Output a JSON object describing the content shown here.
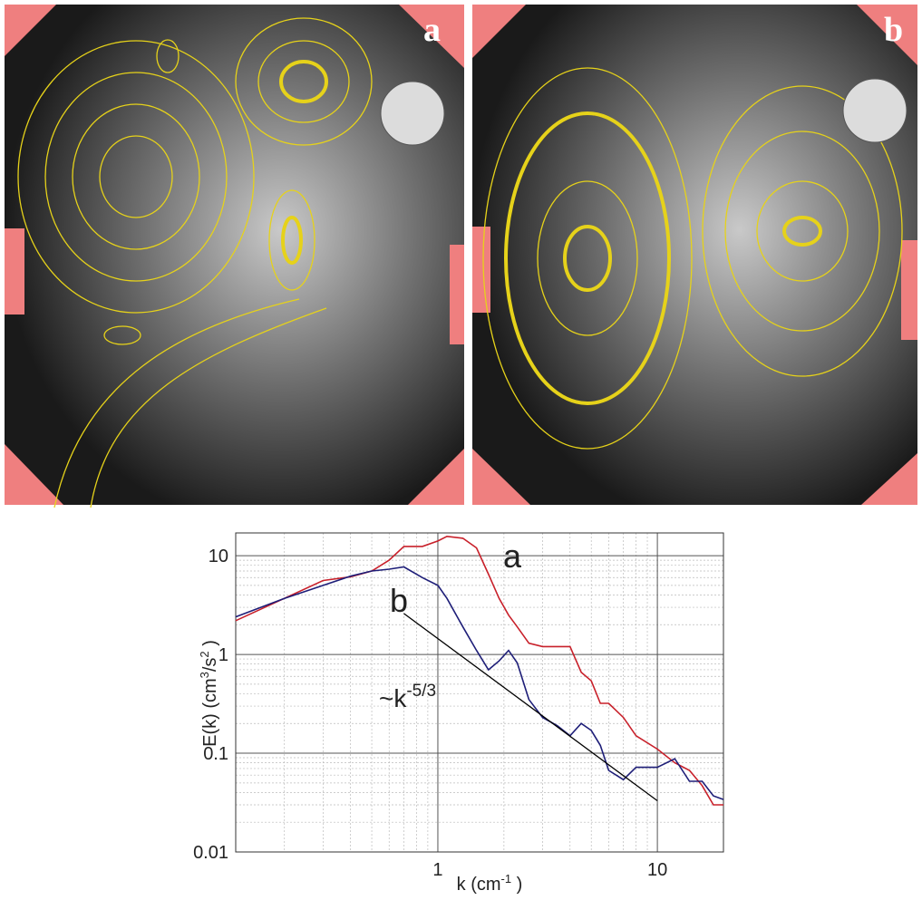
{
  "panels": [
    {
      "label": "a"
    },
    {
      "label": "b"
    }
  ],
  "chart_data": {
    "type": "line",
    "x": [
      0.12,
      0.2,
      0.3,
      0.4,
      0.5,
      0.6,
      0.7,
      0.85,
      1.0,
      1.1,
      1.3,
      1.5,
      1.7,
      1.9,
      2.1,
      2.3,
      2.6,
      3.0,
      3.5,
      4.0,
      4.5,
      5,
      5.5,
      6,
      7,
      8,
      10,
      12,
      14,
      16,
      18,
      20
    ],
    "series": [
      {
        "name": "a",
        "color": "#c8202a",
        "values": [
          2.2,
          3.7,
          5.6,
          6.1,
          7,
          9,
          12.4,
          12.4,
          14.1,
          15.7,
          15,
          12,
          6.5,
          3.7,
          2.5,
          1.9,
          1.3,
          1.2,
          1.2,
          1.2,
          0.66,
          0.54,
          0.32,
          0.32,
          0.23,
          0.15,
          0.11,
          0.08,
          0.067,
          0.047,
          0.03,
          0.03
        ]
      },
      {
        "name": "b",
        "color": "#1e1e78",
        "values": [
          2.4,
          3.7,
          5,
          6.2,
          7,
          7.3,
          7.7,
          6,
          5,
          3.7,
          1.9,
          1.1,
          0.7,
          0.86,
          1.1,
          0.82,
          0.35,
          0.23,
          0.19,
          0.15,
          0.2,
          0.17,
          0.12,
          0.067,
          0.054,
          0.072,
          0.072,
          0.088,
          0.052,
          0.052,
          0.037,
          0.034
        ]
      }
    ],
    "reference_line": {
      "x": [
        0.7,
        10
      ],
      "y": [
        2.6,
        0.033
      ],
      "color": "#000000",
      "label_base": "~k",
      "label_sup": "-5/3"
    },
    "xlim": [
      0.12,
      20
    ],
    "ylim": [
      0.01,
      17
    ],
    "xticks": [
      1,
      10
    ],
    "yticks": [
      0.01,
      0.1,
      1,
      10
    ],
    "xlog": true,
    "ylog": true,
    "grid": true,
    "xlabel_parts": [
      {
        "text": "k (cm"
      },
      {
        "sup": "-1"
      },
      {
        "text": " )"
      }
    ],
    "ylabel_parts": [
      {
        "text": "E(k) (cm"
      },
      {
        "sup": "3"
      },
      {
        "text": "/s"
      },
      {
        "sup": "2"
      },
      {
        "text": " )"
      }
    ]
  }
}
